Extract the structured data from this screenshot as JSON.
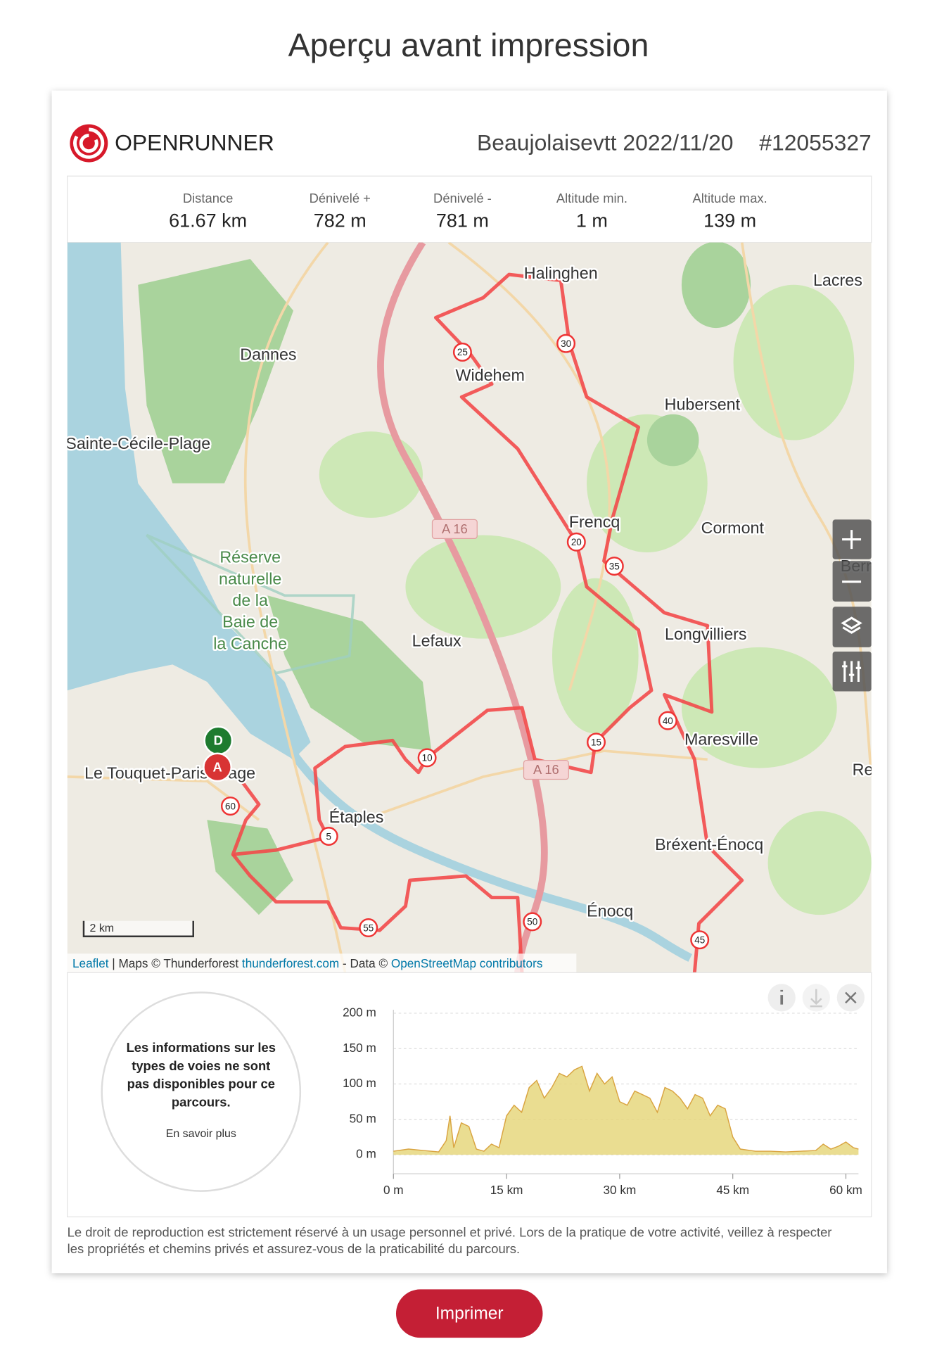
{
  "page_title": "Aperçu avant impression",
  "header": {
    "brand": "OPENRUNNER",
    "route_name": "Beaujolaisevtt 2022/11/20",
    "route_id": "#12055327"
  },
  "stats": [
    {
      "label": "Distance",
      "value": "61.67 km"
    },
    {
      "label": "Dénivelé +",
      "value": "782 m"
    },
    {
      "label": "Dénivelé -",
      "value": "781 m"
    },
    {
      "label": "Altitude min.",
      "value": "1 m"
    },
    {
      "label": "Altitude max.",
      "value": "139 m"
    }
  ],
  "map": {
    "places": [
      "Halinghen",
      "Lacres",
      "Dannes",
      "Widehem",
      "Hubersent",
      "Sainte-Cécile-Plage",
      "Frencq",
      "Cormont",
      "Lefaux",
      "Longvilliers",
      "Maresville",
      "Le Touquet-Paris-Plage",
      "Étaples",
      "Bréxent-Énocq",
      "Énocq",
      "Berr",
      "Re"
    ],
    "reserve": [
      "Réserve",
      "naturelle",
      "de la",
      "Baie de",
      "la Canche"
    ],
    "roads": [
      "A 16",
      "A 16"
    ],
    "route_markers": [
      "5",
      "10",
      "15",
      "20",
      "25",
      "30",
      "35",
      "40",
      "45",
      "50",
      "55",
      "60"
    ],
    "start": "D",
    "end": "A",
    "scale": "2 km",
    "attribution": {
      "leaflet": "Leaflet",
      "maps": " | Maps © Thunderforest ",
      "tf": "thunderforest.com",
      "data": " - Data © ",
      "osm": "OpenStreetMap contributors"
    }
  },
  "surface_info": {
    "lines": [
      "Les informations sur les",
      "types de voies ne sont",
      "pas disponibles pour ce",
      "parcours."
    ],
    "link": "En savoir plus"
  },
  "elevation": {
    "type": "area",
    "x": [
      0,
      2,
      4,
      6,
      7,
      7.5,
      8,
      9,
      10,
      11,
      12,
      13,
      14,
      15,
      16,
      17,
      18,
      19,
      20,
      21,
      22,
      23,
      24,
      25,
      26,
      27,
      28,
      29,
      30,
      31,
      32,
      33,
      34,
      35,
      36,
      37,
      38,
      39,
      40,
      41,
      42,
      43,
      44,
      45,
      46,
      48,
      50,
      52,
      54,
      56,
      57,
      58,
      59,
      60,
      61,
      61.67
    ],
    "values": [
      5,
      8,
      6,
      4,
      20,
      55,
      10,
      45,
      40,
      8,
      5,
      15,
      10,
      55,
      70,
      60,
      95,
      105,
      80,
      95,
      115,
      110,
      120,
      125,
      90,
      115,
      100,
      110,
      75,
      70,
      90,
      85,
      80,
      60,
      95,
      90,
      80,
      65,
      85,
      80,
      55,
      70,
      65,
      25,
      8,
      5,
      5,
      4,
      5,
      6,
      15,
      8,
      12,
      18,
      10,
      8
    ],
    "color": "#e6d77e",
    "xlim": [
      0,
      61.67
    ],
    "ylim": [
      0,
      200
    ],
    "xticks": [
      {
        "value": 0,
        "label": "0 m"
      },
      {
        "value": 15,
        "label": "15 km"
      },
      {
        "value": 30,
        "label": "30 km"
      },
      {
        "value": 45,
        "label": "45 km"
      },
      {
        "value": 60,
        "label": "60 km"
      }
    ],
    "yticks": [
      {
        "value": 0,
        "label": "0 m"
      },
      {
        "value": 50,
        "label": "50 m"
      },
      {
        "value": 100,
        "label": "100 m"
      },
      {
        "value": 150,
        "label": "150 m"
      },
      {
        "value": 200,
        "label": "200 m"
      }
    ],
    "grid": true
  },
  "footer": [
    "Le droit de reproduction est strictement réservé à un usage personnel et privé. Lors de la pratique de votre activité, veillez à respecter",
    "les propriétés et chemins privés et assurez-vous de la praticabilité du parcours."
  ],
  "print_button": "Imprimer"
}
